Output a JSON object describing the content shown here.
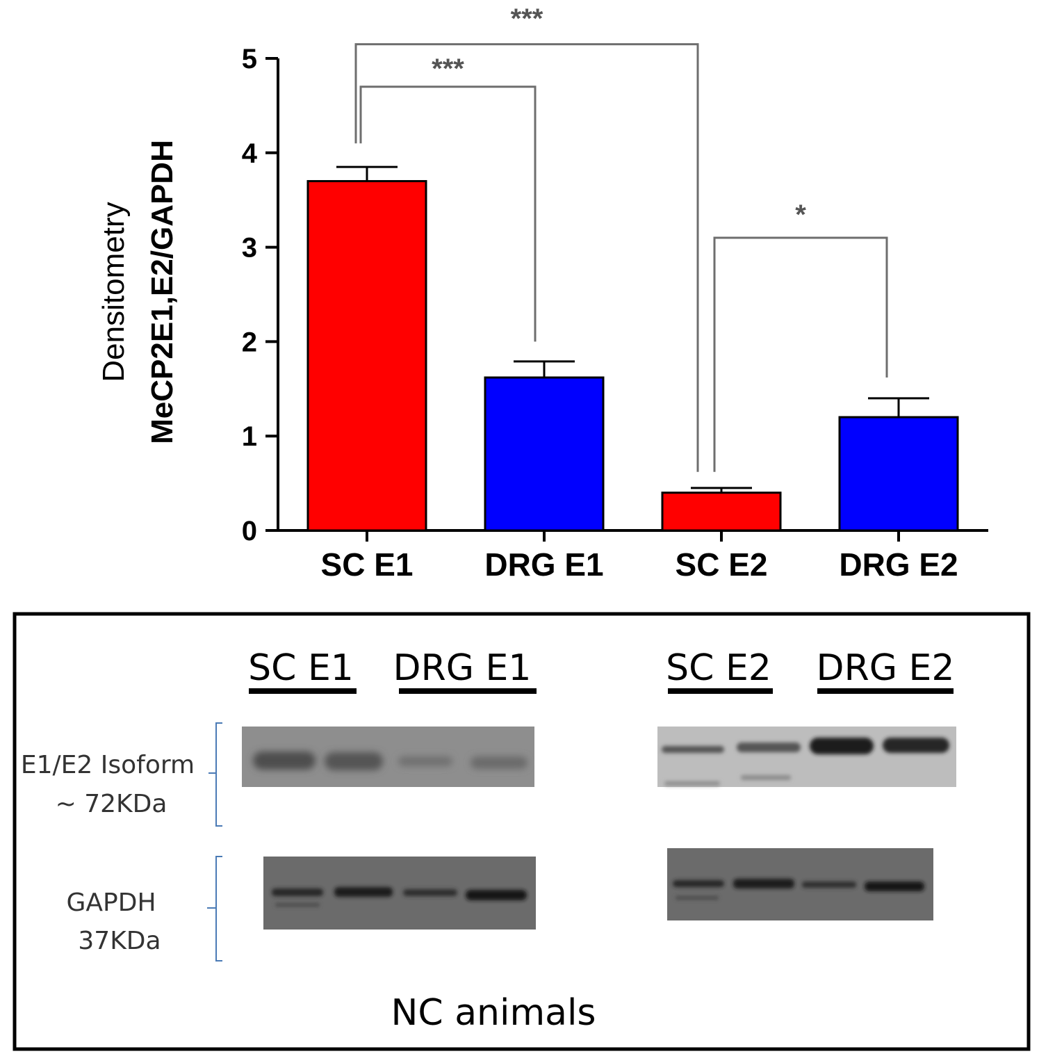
{
  "chart_data": {
    "type": "bar",
    "ylabel_line1": "Densitometry",
    "ylabel_line2": "MeCP2E1,E2/GAPDH",
    "categories": [
      "SC E1",
      "DRG E1",
      "SC E2",
      "DRG E2"
    ],
    "values": [
      3.7,
      1.62,
      0.4,
      1.2
    ],
    "errors": [
      0.15,
      0.17,
      0.05,
      0.2
    ],
    "colors": [
      "#ff0000",
      "#0000ff",
      "#ff0000",
      "#0000ff"
    ],
    "ylim": [
      0,
      5
    ],
    "yticks": [
      "0",
      "1",
      "2",
      "3",
      "4",
      "5"
    ],
    "significance": [
      {
        "from": 0,
        "to": 2,
        "label": "***"
      },
      {
        "from": 0,
        "to": 1,
        "label": "***"
      },
      {
        "from": 2,
        "to": 3,
        "label": "*"
      }
    ]
  },
  "blot": {
    "lane_labels_left": [
      "SC E1",
      "DRG E1"
    ],
    "lane_labels_right": [
      "SC E2",
      "DRG E2"
    ],
    "isoform_label_line1": "E1/E2 Isoform",
    "isoform_label_line2": "~ 72KDa",
    "gapdh_label_line1": "GAPDH",
    "gapdh_label_line2": "37KDa",
    "caption": "NC animals"
  }
}
